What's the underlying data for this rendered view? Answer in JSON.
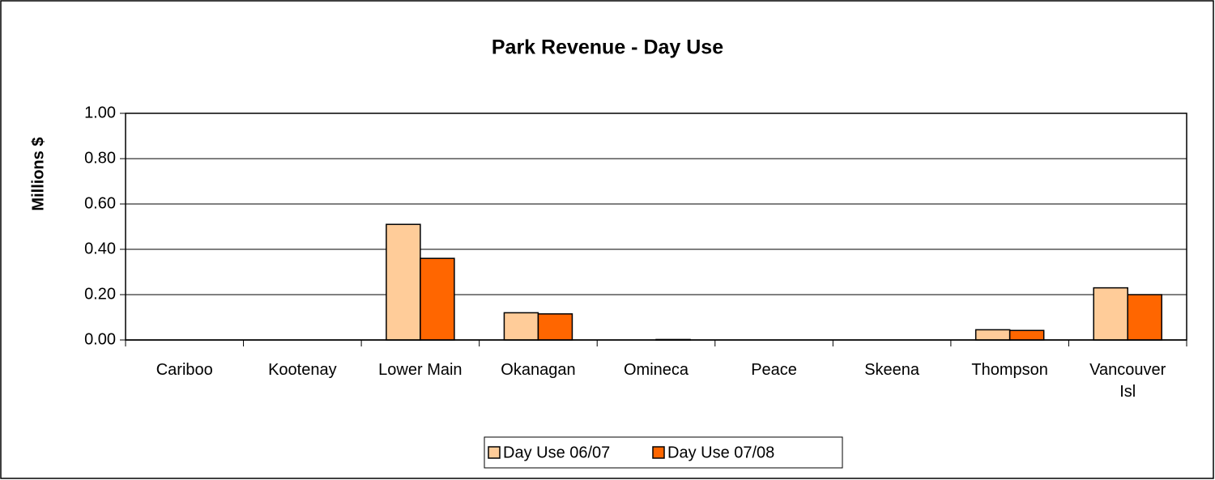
{
  "chart_data": {
    "type": "bar",
    "title": "Park Revenue - Day Use",
    "y_label": "Millions $",
    "categories": [
      "Cariboo",
      "Kootenay",
      "Lower Main",
      "Okanagan",
      "Omineca",
      "Peace",
      "Skeena",
      "Thompson",
      "Vancouver Isl"
    ],
    "series": [
      {
        "name": "Day Use 06/07",
        "color": "#ffcc99",
        "values": [
          0,
          0,
          0.51,
          0.12,
          0,
          0,
          0,
          0.045,
          0.23
        ]
      },
      {
        "name": "Day Use 07/08",
        "color": "#ff6600",
        "values": [
          0,
          0,
          0.36,
          0.115,
          0.002,
          0,
          0,
          0.042,
          0.2
        ]
      }
    ],
    "ylim": [
      0,
      1
    ],
    "yticks": [
      {
        "value": 0,
        "label": "0.00"
      },
      {
        "value": 0.2,
        "label": "0.20"
      },
      {
        "value": 0.4,
        "label": "0.40"
      },
      {
        "value": 0.6,
        "label": "0.60"
      },
      {
        "value": 0.8,
        "label": "0.80"
      },
      {
        "value": 1,
        "label": "1.00"
      }
    ],
    "grid": true,
    "legend": "bottom"
  }
}
